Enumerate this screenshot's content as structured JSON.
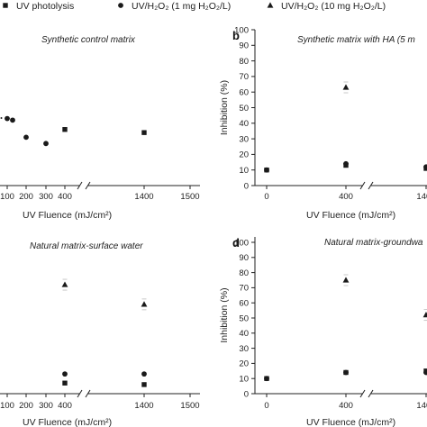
{
  "legend": [
    {
      "marker": "square",
      "label": "UV photolysis"
    },
    {
      "marker": "circle",
      "label": "UV/H₂O₂ (1 mg H₂O₂/L)"
    },
    {
      "marker": "triangle",
      "label": "UV/H₂O₂ (10 mg H₂O₂/L)"
    }
  ],
  "chart_data": [
    {
      "type": "scatter",
      "panel_label": "",
      "title": "Synthetic control matrix",
      "xlabel": "UV Fluence (mJ/cm²)",
      "ylabel": "",
      "x_ticks": [
        "100",
        "200",
        "300",
        "400",
        "1400",
        "1500"
      ],
      "axis_break": true,
      "series": [
        {
          "name": "UV photolysis",
          "marker": "square",
          "points": [
            {
              "x": 400,
              "y": 36
            },
            {
              "x": 1400,
              "y": 34
            }
          ]
        },
        {
          "name": "UV/H₂O₂ (1 mg H₂O₂/L)",
          "marker": "circle",
          "points": [
            {
              "x": 100,
              "y": 43
            },
            {
              "x": 130,
              "y": 42
            },
            {
              "x": 200,
              "y": 31
            },
            {
              "x": 300,
              "y": 27
            }
          ]
        },
        {
          "name": "UV/H₂O₂ (10 mg H₂O₂/L)",
          "marker": "triangle",
          "points": []
        }
      ]
    },
    {
      "type": "scatter",
      "panel_label": "b",
      "title": "Synthetic matrix with HA (5 m",
      "xlabel": "UV Fluence (mJ/cm²)",
      "ylabel": "Inhibition (%)",
      "y_ticks": [
        "0",
        "10",
        "20",
        "30",
        "40",
        "50",
        "60",
        "70",
        "80",
        "90",
        "100"
      ],
      "ylim": [
        0,
        100
      ],
      "x_ticks": [
        "0",
        "400",
        "1400"
      ],
      "axis_break": true,
      "series": [
        {
          "name": "UV photolysis",
          "marker": "square",
          "points": [
            {
              "x": 0,
              "y": 10
            },
            {
              "x": 400,
              "y": 13
            },
            {
              "x": 1400,
              "y": 11
            }
          ]
        },
        {
          "name": "UV/H₂O₂ (1 mg H₂O₂/L)",
          "marker": "circle",
          "points": [
            {
              "x": 0,
              "y": 10
            },
            {
              "x": 400,
              "y": 14
            },
            {
              "x": 1400,
              "y": 12
            }
          ]
        },
        {
          "name": "UV/H₂O₂ (10 mg H₂O₂/L)",
          "marker": "triangle",
          "points": [
            {
              "x": 400,
              "y": 63
            }
          ]
        }
      ]
    },
    {
      "type": "scatter",
      "panel_label": "",
      "title": "Natural matrix-surface water",
      "xlabel": "UV Fluence (mJ/cm²)",
      "ylabel": "",
      "x_ticks": [
        "100",
        "200",
        "300",
        "400",
        "1400",
        "1500"
      ],
      "axis_break": true,
      "series": [
        {
          "name": "UV photolysis",
          "marker": "square",
          "points": [
            {
              "x": 400,
              "y": 7
            },
            {
              "x": 1400,
              "y": 6
            }
          ]
        },
        {
          "name": "UV/H₂O₂ (1 mg H₂O₂/L)",
          "marker": "circle",
          "points": [
            {
              "x": 400,
              "y": 13
            },
            {
              "x": 1400,
              "y": 13
            }
          ]
        },
        {
          "name": "UV/H₂O₂ (10 mg H₂O₂/L)",
          "marker": "triangle",
          "points": [
            {
              "x": 400,
              "y": 72
            },
            {
              "x": 1400,
              "y": 59
            }
          ]
        }
      ]
    },
    {
      "type": "scatter",
      "panel_label": "d",
      "title": "Natural matrix-groundwa",
      "xlabel": "UV Fluence (mJ/cm²)",
      "ylabel": "Inhibition (%)",
      "y_ticks": [
        "0",
        "10",
        "20",
        "30",
        "40",
        "50",
        "60",
        "70",
        "80",
        "90",
        "100"
      ],
      "ylim": [
        0,
        100
      ],
      "x_ticks": [
        "0",
        "400",
        "1400"
      ],
      "axis_break": true,
      "series": [
        {
          "name": "UV photolysis",
          "marker": "square",
          "points": [
            {
              "x": 0,
              "y": 10
            },
            {
              "x": 400,
              "y": 14
            },
            {
              "x": 1400,
              "y": 15
            }
          ]
        },
        {
          "name": "UV/H₂O₂ (1 mg H₂O₂/L)",
          "marker": "circle",
          "points": [
            {
              "x": 0,
              "y": 10
            },
            {
              "x": 400,
              "y": 14
            },
            {
              "x": 1400,
              "y": 14
            }
          ]
        },
        {
          "name": "UV/H₂O₂ (10 mg H₂O₂/L)",
          "marker": "triangle",
          "points": [
            {
              "x": 400,
              "y": 75
            },
            {
              "x": 1400,
              "y": 52
            }
          ]
        }
      ]
    }
  ]
}
